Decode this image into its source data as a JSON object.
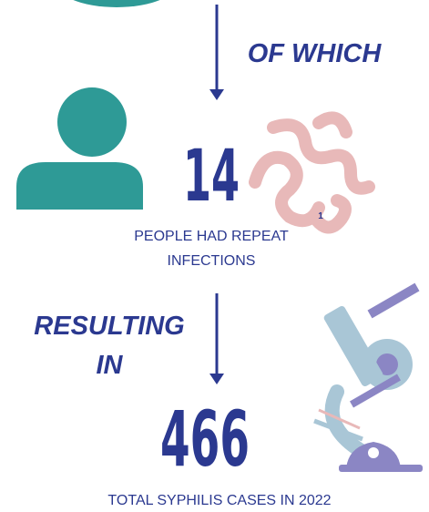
{
  "step1": {
    "connector": "OF WHICH",
    "number": "14",
    "footnote": "1",
    "caption_lines": [
      "PEOPLE HAD REPEAT",
      "INFECTIONS"
    ]
  },
  "step2": {
    "connector_lines": [
      "RESULTING",
      "IN"
    ],
    "number": "466",
    "caption": "TOTAL SYPHILIS CASES IN 2022"
  }
}
